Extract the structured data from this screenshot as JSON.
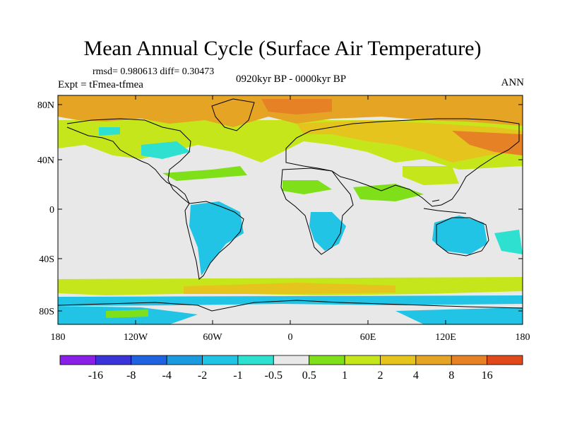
{
  "title": "Mean Annual Cycle (Surface Air Temperature)",
  "stats_text": "rmsd= 0.980613 diff= 0.30473",
  "experiment_text": "Expt = tFmea-tfmea",
  "period_text": "0920kyr BP - 0000kyr BP",
  "season_text": "ANN",
  "lat_labels": [
    "80N",
    "40N",
    "0",
    "40S",
    "80S"
  ],
  "lon_labels": [
    "180",
    "120W",
    "60W",
    "0",
    "60E",
    "120E",
    "180"
  ],
  "colorbar": {
    "labels": [
      "-16",
      "-8",
      "-4",
      "-2",
      "-1",
      "-0.5",
      "0.5",
      "1",
      "2",
      "4",
      "8",
      "16"
    ],
    "colors": [
      "#8a20e8",
      "#3a33d8",
      "#1f63e0",
      "#1a9be0",
      "#22c4e6",
      "#2ee0cf",
      "#e8e8e8",
      "#7fe01a",
      "#c6e61c",
      "#e6c41e",
      "#e6a424",
      "#e68126",
      "#e04a1a"
    ]
  },
  "colors": {
    "land_neutral": "#e8e8e8",
    "ocean_warm_light": "#c6e61c",
    "ocean_warm": "#e6c41e",
    "arctic_warm": "#e6a424",
    "arctic_hot": "#e68126",
    "cool_light": "#2ee0cf",
    "cool": "#22c4e6",
    "green": "#7fe01a"
  }
}
